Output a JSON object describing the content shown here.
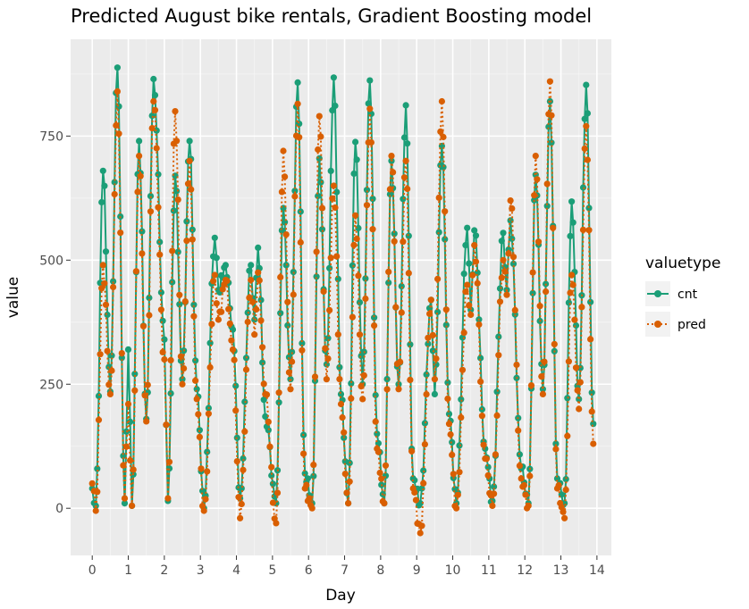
{
  "chart_data": {
    "type": "line",
    "title": "Predicted August bike rentals, Gradient Boosting model",
    "xlabel": "Day",
    "ylabel": "value",
    "xlim": [
      -0.6,
      14.4
    ],
    "ylim": [
      -95,
      945
    ],
    "x_ticks": [
      0,
      1,
      2,
      3,
      4,
      5,
      6,
      7,
      8,
      9,
      10,
      11,
      12,
      13,
      14
    ],
    "y_ticks": [
      0,
      250,
      500,
      750
    ],
    "grid": true,
    "legend": {
      "title": "valuetype",
      "position": "right"
    },
    "series": [
      {
        "name": "cnt",
        "color": "#1b9e77",
        "line_style": "solid",
        "peaks": [
          [
            0.3,
            680
          ],
          [
            0.7,
            888
          ],
          [
            1.3,
            740
          ],
          [
            1.7,
            865
          ],
          [
            2.3,
            670
          ],
          [
            2.7,
            740
          ],
          [
            3.4,
            545
          ],
          [
            3.7,
            490
          ],
          [
            4.4,
            490
          ],
          [
            4.6,
            525
          ],
          [
            5.3,
            605
          ],
          [
            5.7,
            858
          ],
          [
            6.3,
            705
          ],
          [
            6.7,
            868
          ],
          [
            7.3,
            738
          ],
          [
            7.7,
            862
          ],
          [
            8.3,
            700
          ],
          [
            8.7,
            812
          ],
          [
            9.4,
            420
          ],
          [
            9.7,
            730
          ],
          [
            10.4,
            565
          ],
          [
            10.6,
            560
          ],
          [
            11.4,
            555
          ],
          [
            11.6,
            580
          ],
          [
            12.3,
            672
          ],
          [
            12.7,
            820
          ],
          [
            13.3,
            618
          ],
          [
            13.7,
            853
          ]
        ],
        "troughs": [
          [
            0,
            40
          ],
          [
            0.1,
            5
          ],
          [
            0.5,
            235
          ],
          [
            0.9,
            10
          ],
          [
            1.0,
            320
          ],
          [
            1.1,
            5
          ],
          [
            1.5,
            180
          ],
          [
            2.0,
            340
          ],
          [
            2.1,
            15
          ],
          [
            2.5,
            260
          ],
          [
            2.9,
            240
          ],
          [
            3.1,
            0
          ],
          [
            3.5,
            440
          ],
          [
            3.9,
            360
          ],
          [
            4.1,
            20
          ],
          [
            4.5,
            380
          ],
          [
            4.8,
            185
          ],
          [
            5.1,
            10
          ],
          [
            5.5,
            260
          ],
          [
            5.9,
            70
          ],
          [
            6.1,
            10
          ],
          [
            6.5,
            290
          ],
          [
            6.9,
            230
          ],
          [
            7.1,
            10
          ],
          [
            7.5,
            250
          ],
          [
            7.9,
            150
          ],
          [
            8.1,
            10
          ],
          [
            8.5,
            250
          ],
          [
            8.9,
            60
          ],
          [
            9.1,
            10
          ],
          [
            9.5,
            230
          ],
          [
            9.9,
            190
          ],
          [
            10.1,
            10
          ],
          [
            10.5,
            400
          ],
          [
            10.9,
            120
          ],
          [
            11.1,
            15
          ],
          [
            11.5,
            440
          ],
          [
            11.9,
            80
          ],
          [
            12.1,
            10
          ],
          [
            12.5,
            240
          ],
          [
            12.9,
            60
          ],
          [
            13.1,
            10
          ],
          [
            13.5,
            220
          ],
          [
            13.9,
            170
          ]
        ]
      },
      {
        "name": "pred",
        "color": "#d95f02",
        "line_style": "dotted",
        "peaks": [
          [
            0.3,
            490
          ],
          [
            0.7,
            840
          ],
          [
            1.3,
            710
          ],
          [
            1.7,
            820
          ],
          [
            2.3,
            800
          ],
          [
            2.7,
            700
          ],
          [
            3.4,
            470
          ],
          [
            3.7,
            460
          ],
          [
            4.4,
            460
          ],
          [
            4.6,
            475
          ],
          [
            5.3,
            720
          ],
          [
            5.7,
            815
          ],
          [
            6.3,
            790
          ],
          [
            6.7,
            650
          ],
          [
            7.3,
            590
          ],
          [
            7.7,
            805
          ],
          [
            8.3,
            710
          ],
          [
            8.7,
            700
          ],
          [
            9.4,
            420
          ],
          [
            9.7,
            820
          ],
          [
            10.4,
            450
          ],
          [
            10.6,
            530
          ],
          [
            11.4,
            500
          ],
          [
            11.6,
            620
          ],
          [
            12.3,
            710
          ],
          [
            12.7,
            860
          ],
          [
            13.3,
            470
          ],
          [
            13.7,
            770
          ]
        ],
        "troughs": [
          [
            0,
            50
          ],
          [
            0.1,
            -5
          ],
          [
            0.5,
            230
          ],
          [
            0.9,
            20
          ],
          [
            1.0,
            210
          ],
          [
            1.1,
            5
          ],
          [
            1.5,
            175
          ],
          [
            2.0,
            300
          ],
          [
            2.1,
            20
          ],
          [
            2.5,
            250
          ],
          [
            2.9,
            220
          ],
          [
            3.1,
            -5
          ],
          [
            3.5,
            380
          ],
          [
            3.9,
            320
          ],
          [
            4.1,
            -20
          ],
          [
            4.5,
            350
          ],
          [
            4.8,
            230
          ],
          [
            5.1,
            -30
          ],
          [
            5.5,
            240
          ],
          [
            5.9,
            40
          ],
          [
            6.1,
            0
          ],
          [
            6.5,
            260
          ],
          [
            6.9,
            210
          ],
          [
            7.1,
            10
          ],
          [
            7.5,
            220
          ],
          [
            7.9,
            120
          ],
          [
            8.1,
            10
          ],
          [
            8.5,
            240
          ],
          [
            8.9,
            40
          ],
          [
            9.1,
            -50
          ],
          [
            9.5,
            260
          ],
          [
            9.9,
            170
          ],
          [
            10.1,
            0
          ],
          [
            10.5,
            390
          ],
          [
            10.9,
            100
          ],
          [
            11.1,
            5
          ],
          [
            11.5,
            430
          ],
          [
            11.9,
            60
          ],
          [
            12.1,
            5
          ],
          [
            12.5,
            230
          ],
          [
            12.9,
            40
          ],
          [
            13.1,
            -20
          ],
          [
            13.5,
            200
          ],
          [
            13.9,
            130
          ]
        ]
      }
    ]
  }
}
